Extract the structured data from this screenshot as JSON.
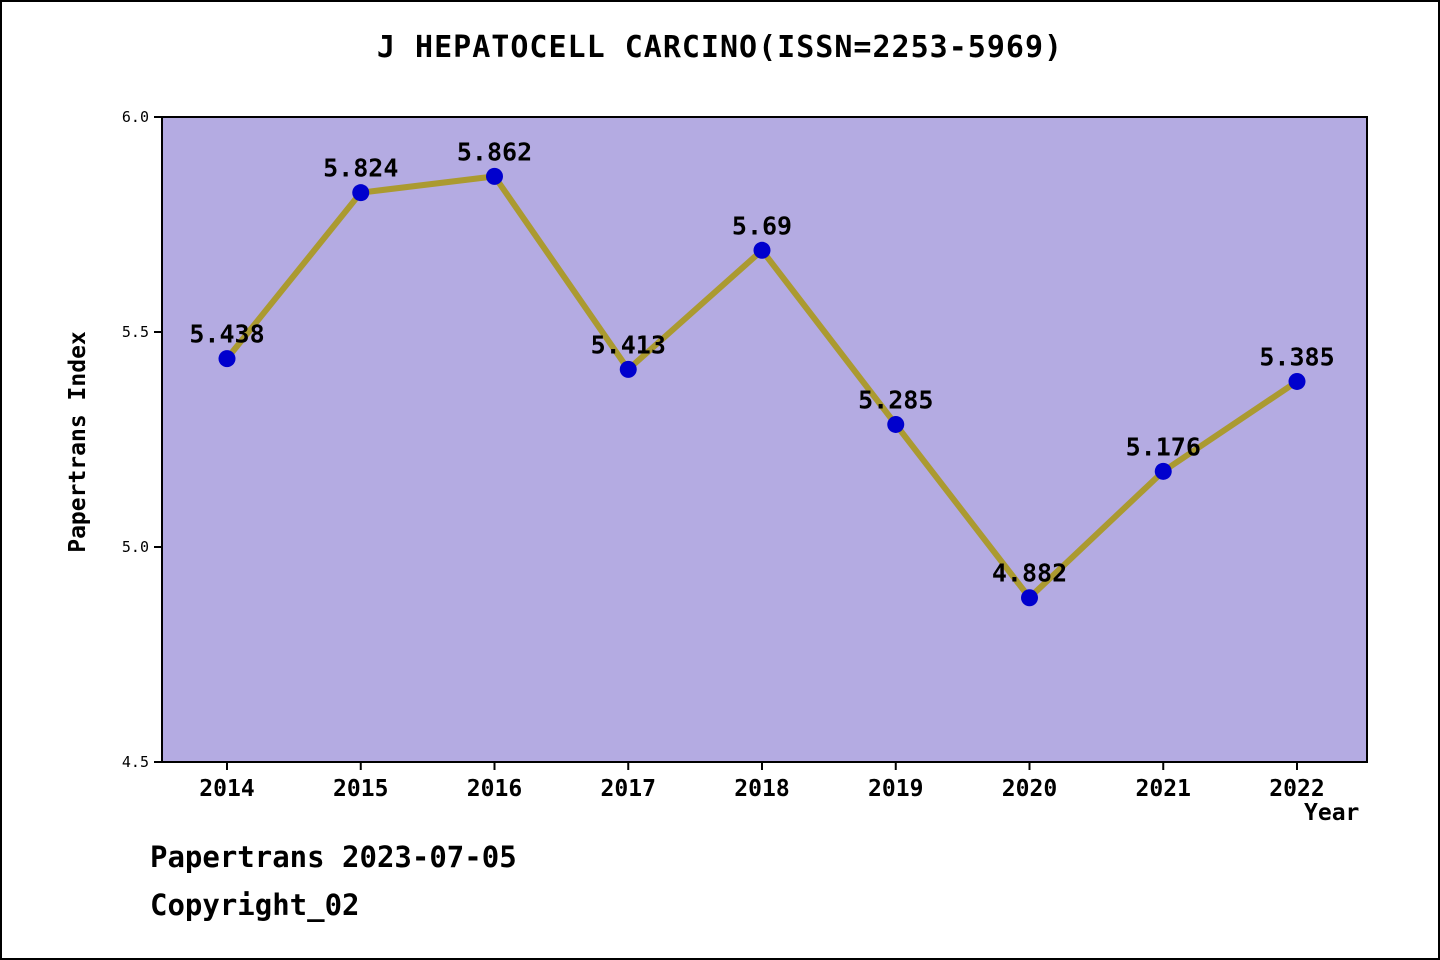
{
  "chart_data": {
    "type": "line",
    "title": "J HEPATOCELL CARCINO(ISSN=2253-5969)",
    "xlabel": "Year",
    "ylabel": "Papertrans Index",
    "x": [
      2014,
      2015,
      2016,
      2017,
      2018,
      2019,
      2020,
      2021,
      2022
    ],
    "values": [
      5.438,
      5.824,
      5.862,
      5.413,
      5.69,
      5.285,
      4.882,
      5.176,
      5.385
    ],
    "point_labels": [
      "5.438",
      "5.824",
      "5.862",
      "5.413",
      "5.69",
      "5.285",
      "4.882",
      "5.176",
      "5.385"
    ],
    "ylim": [
      4.5,
      6.0
    ],
    "yticks": [
      4.5,
      5.0,
      5.5,
      6.0
    ],
    "ytick_labels": [
      "4.5",
      "5.0",
      "5.5",
      "6.0"
    ],
    "grid": false,
    "legend": "none",
    "colors": {
      "plot_bg": "#b4abe2",
      "line": "#ab9a30",
      "marker": "#0000cd",
      "axis": "#000000",
      "text": "#000000"
    }
  },
  "footer": {
    "line1": "Papertrans 2023-07-05",
    "line2": "Copyright_02"
  }
}
